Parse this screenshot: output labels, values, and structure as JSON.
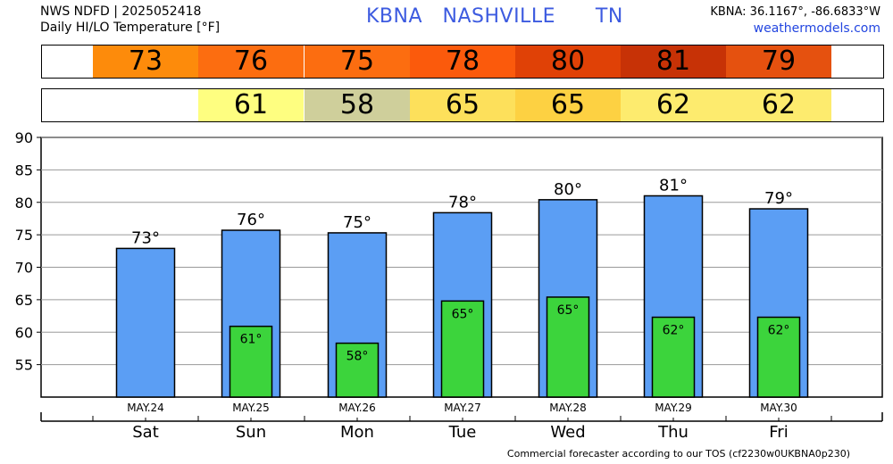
{
  "header": {
    "line1": "NWS NDFD | 2025052418",
    "line2": "Daily HI/LO Temperature [°F]",
    "station_title": "KBNA   NASHVILLE      TN",
    "coords": "KBNA: 36.1167°, -86.6833°W",
    "site": "weathermodels.com"
  },
  "colors": {
    "hi_bar": "#5b9ef4",
    "lo_bar": "#3cd43c",
    "hi_cells": [
      "#fd8b0b",
      "#fc6d10",
      "#fc6d10",
      "#fb5a0c",
      "#e04106",
      "#c73206",
      "#e5510f"
    ],
    "lo_cells": [
      "#fefe80",
      "#cfcf9b",
      "#fde05b",
      "#fdd142",
      "#fdeb6e",
      "#fdeb6e"
    ]
  },
  "chart_data": {
    "type": "bar",
    "title": "Daily HI/LO Temperature [°F]",
    "ylim": [
      50,
      90
    ],
    "yticks": [
      55,
      60,
      65,
      70,
      75,
      80,
      85,
      90
    ],
    "dates": [
      "MAY.24",
      "MAY.25",
      "MAY.26",
      "MAY.27",
      "MAY.28",
      "MAY.29",
      "MAY.30"
    ],
    "categories": [
      "Sat",
      "Sun",
      "Mon",
      "Tue",
      "Wed",
      "Thu",
      "Fri"
    ],
    "series": [
      {
        "values": [
          73,
          76,
          75,
          78,
          80,
          81,
          79
        ],
        "labels": [
          "73°",
          "76°",
          "75°",
          "78°",
          "80°",
          "81°",
          "79°"
        ]
      },
      {
        "values": [
          null,
          61,
          58,
          65,
          65,
          62,
          62
        ],
        "labels": [
          "",
          "61°",
          "58°",
          "65°",
          "65°",
          "62°",
          "62°"
        ]
      }
    ],
    "plot_values": {
      "hi": [
        72.9,
        75.7,
        75.3,
        78.4,
        80.4,
        81.0,
        79.0
      ],
      "lo": [
        null,
        60.9,
        58.3,
        64.8,
        65.4,
        62.3,
        62.3
      ]
    },
    "hi_strip": [
      "73",
      "76",
      "75",
      "78",
      "80",
      "81",
      "79"
    ],
    "lo_strip": [
      "",
      "61",
      "58",
      "65",
      "65",
      "62",
      "62"
    ]
  },
  "footer": "Commercial forecaster according to our TOS (cf2230w0UKBNA0p230)"
}
